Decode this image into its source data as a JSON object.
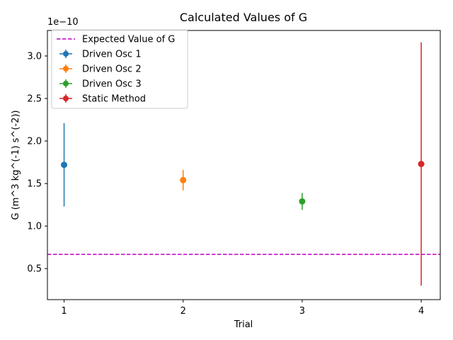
{
  "chart_data": {
    "type": "scatter",
    "title": "Calculated Values of G",
    "xlabel": "Trial",
    "ylabel": "G (m^3 kg^(-1) s^(-2))",
    "y_offset_label": "1e−10",
    "y_scale_exponent": -10,
    "xlim": [
      0.86,
      4.16
    ],
    "ylim": [
      0.135,
      3.3
    ],
    "x_ticks": [
      1,
      2,
      3,
      4
    ],
    "x_tick_labels": [
      "1",
      "2",
      "3",
      "4"
    ],
    "y_ticks": [
      0.5,
      1.0,
      1.5,
      2.0,
      2.5,
      3.0
    ],
    "y_tick_labels": [
      "0.5",
      "1.0",
      "1.5",
      "2.0",
      "2.5",
      "3.0"
    ],
    "grid": false,
    "legend_position": "upper-left",
    "reference_line": {
      "name": "Expected Value of G",
      "y": 0.667,
      "color": "#bf00bf",
      "style": "dashed"
    },
    "series": [
      {
        "name": "Driven Osc 1",
        "x": 1,
        "y": 1.72,
        "yerr": 0.49,
        "color": "#1f77b4"
      },
      {
        "name": "Driven Osc 2",
        "x": 2,
        "y": 1.54,
        "yerr": 0.12,
        "color": "#ff7f0e"
      },
      {
        "name": "Driven Osc 3",
        "x": 3,
        "y": 1.29,
        "yerr": 0.1,
        "color": "#2ca02c"
      },
      {
        "name": "Static Method",
        "x": 4,
        "y": 1.73,
        "yerr": 1.43,
        "color": "#d62728"
      }
    ]
  }
}
